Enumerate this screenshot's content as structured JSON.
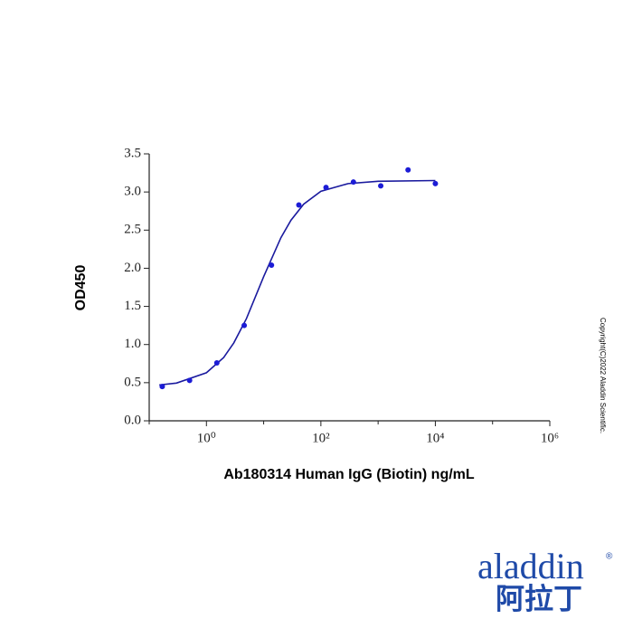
{
  "chart_data": {
    "type": "scatter",
    "xlabel": "Ab180314 Human IgG (Biotin) ng/mL",
    "ylabel": "OD450",
    "xscale": "log",
    "xlim": [
      0.1,
      1000000
    ],
    "ylim": [
      0,
      3.5
    ],
    "xticks": [
      {
        "value": 1,
        "label": "10⁰"
      },
      {
        "value": 100,
        "label": "10²"
      },
      {
        "value": 10000,
        "label": "10⁴"
      },
      {
        "value": 1000000,
        "label": "10⁶"
      }
    ],
    "x_minor_ticks": [
      0.1,
      10,
      1000,
      100000
    ],
    "yticks": [
      {
        "value": 0,
        "label": "0.0"
      },
      0.5,
      {
        "value": 1,
        "label": "1.0"
      },
      1.5,
      {
        "value": 2,
        "label": "2.0"
      },
      2.5,
      {
        "value": 3,
        "label": "3.0"
      },
      3.5
    ],
    "series": [
      {
        "color": "#1c1cd6",
        "x": [
          0.169,
          0.508,
          1.52,
          4.57,
          13.7,
          41.2,
          123,
          370,
          1111,
          3333,
          10000
        ],
        "values": [
          0.45,
          0.53,
          0.76,
          1.25,
          2.04,
          2.83,
          3.06,
          3.13,
          3.08,
          3.29,
          3.11
        ]
      }
    ],
    "fit": {
      "color": "#1a1a9e",
      "x": [
        0.15,
        0.3,
        1,
        2,
        3,
        5,
        10,
        20,
        30,
        50,
        100,
        300,
        1000,
        10000
      ],
      "values": [
        0.47,
        0.495,
        0.63,
        0.83,
        1.02,
        1.34,
        1.89,
        2.4,
        2.63,
        2.84,
        3.01,
        3.11,
        3.14,
        3.15
      ]
    }
  },
  "copyright": "Copyright(C)2022 Aladdin Scientific.",
  "logo": {
    "name": "aladdin",
    "mark": "®",
    "chinese": "阿拉丁"
  }
}
